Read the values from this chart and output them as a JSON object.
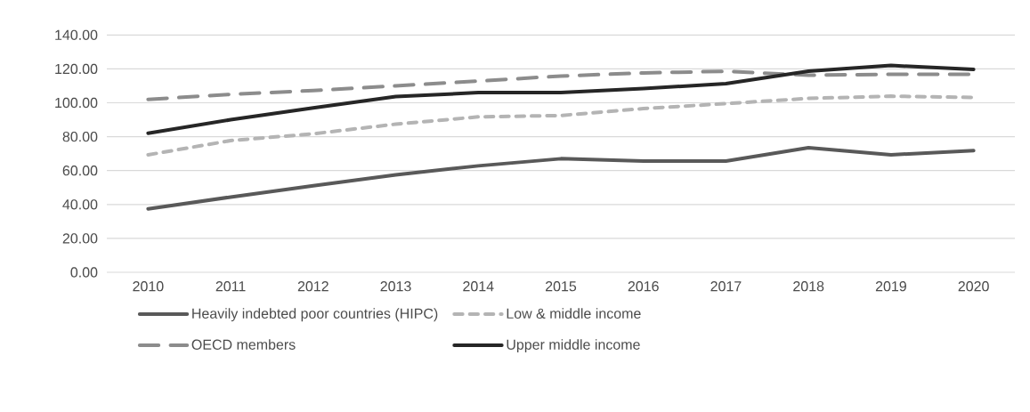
{
  "chart_data": {
    "type": "line",
    "categories": [
      "2010",
      "2011",
      "2012",
      "2013",
      "2014",
      "2015",
      "2016",
      "2017",
      "2018",
      "2019",
      "2020"
    ],
    "series": [
      {
        "name": "Heavily indebted poor countries (HIPC)",
        "color": "#595959",
        "line_style": "solid",
        "values": [
          37.4,
          44.4,
          51,
          57.5,
          62.8,
          67,
          65.6,
          65.6,
          73.5,
          69.3,
          71.8
        ]
      },
      {
        "name": "Low & middle income",
        "color": "#b4b4b4",
        "line_style": "dotted",
        "values": [
          69.3,
          77.7,
          81.7,
          87.4,
          91.7,
          92.5,
          96.6,
          99.5,
          102.6,
          103.9,
          103.2
        ]
      },
      {
        "name": "OECD members",
        "color": "#8c8c8c",
        "line_style": "dashed",
        "values": [
          102,
          105,
          107.2,
          110,
          112.8,
          115.8,
          117.6,
          118.6,
          116.3,
          116.8,
          116.8
        ]
      },
      {
        "name": "Upper middle income",
        "color": "#262626",
        "line_style": "solid",
        "values": [
          82,
          90,
          97,
          103.7,
          106,
          106,
          108.4,
          111.3,
          118.6,
          122,
          119.7
        ]
      }
    ],
    "ylim": [
      0,
      140
    ],
    "yticks": [
      {
        "value": 0,
        "label": "0.00"
      },
      {
        "value": 20,
        "label": "20.00"
      },
      {
        "value": 40,
        "label": "40.00"
      },
      {
        "value": 60,
        "label": "60.00"
      },
      {
        "value": 80,
        "label": "80.00"
      },
      {
        "value": 100,
        "label": "100.00"
      },
      {
        "value": 120,
        "label": "120.00"
      },
      {
        "value": 140,
        "label": "140.00"
      }
    ],
    "grid": "y",
    "legend": "bottom",
    "marker": "none"
  }
}
